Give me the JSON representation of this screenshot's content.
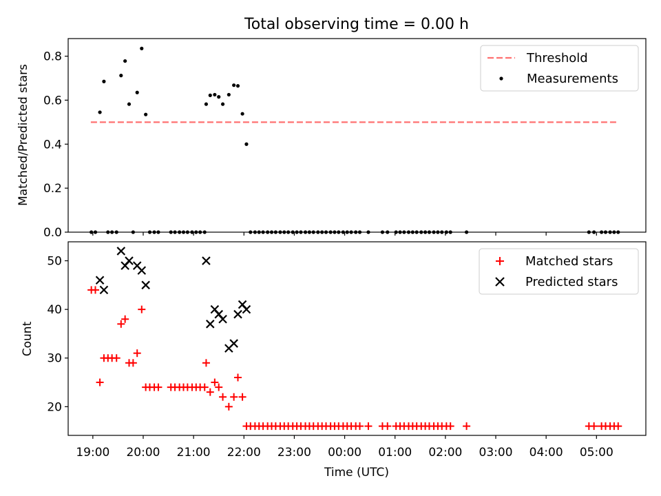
{
  "chart_data": [
    {
      "type": "scatter",
      "title": "Total observing time = 0.00 h",
      "ylabel": "Matched/Predicted stars",
      "xlabel": "",
      "xlim": [
        18.51,
        29.98
      ],
      "ylim": [
        0,
        0.88
      ],
      "yticks": [
        0.0,
        0.2,
        0.4,
        0.6,
        0.8
      ],
      "ytick_labels": [
        "0.0",
        "0.2",
        "0.4",
        "0.6",
        "0.8"
      ],
      "legend_position": "top-right",
      "grid": false,
      "threshold": {
        "name": "Threshold",
        "value": 0.5,
        "x_range": [
          18.96,
          29.44
        ],
        "color": "#ff7070"
      },
      "series": [
        {
          "name": "Measurements",
          "marker": "dot",
          "color": "#000000",
          "x": [
            19.14,
            19.22,
            19.56,
            19.64,
            19.72,
            19.88,
            19.97,
            20.05,
            21.25,
            21.33,
            21.42,
            21.5,
            21.58,
            21.7,
            21.8,
            21.88,
            21.97,
            22.05
          ],
          "y": [
            0.545,
            0.685,
            0.712,
            0.778,
            0.582,
            0.635,
            0.835,
            0.535,
            0.582,
            0.622,
            0.625,
            0.615,
            0.582,
            0.625,
            0.668,
            0.665,
            0.538,
            0.4
          ]
        },
        {
          "name": "",
          "marker": "dot",
          "color": "#000000",
          "x": [
            18.97,
            19.05,
            19.3,
            19.38,
            19.47,
            19.8,
            20.13,
            20.22,
            20.3,
            20.55,
            20.63,
            20.72,
            20.8,
            20.88,
            20.97,
            21.05,
            21.13,
            21.22,
            22.13,
            22.22,
            22.3,
            22.38,
            22.47,
            22.55,
            22.63,
            22.72,
            22.8,
            22.88,
            22.97,
            23.05,
            23.13,
            23.22,
            23.3,
            23.38,
            23.47,
            23.55,
            23.63,
            23.72,
            23.8,
            23.88,
            23.97,
            24.05,
            24.13,
            24.22,
            24.3,
            24.47,
            24.75,
            24.85,
            25.02,
            25.1,
            25.18,
            25.27,
            25.35,
            25.43,
            25.52,
            25.6,
            25.68,
            25.77,
            25.85,
            25.93,
            26.02,
            26.1,
            26.42,
            28.85,
            28.95,
            29.1,
            29.18,
            29.27,
            29.35,
            29.43
          ],
          "y": [
            0,
            0,
            0,
            0,
            0,
            0,
            0,
            0,
            0,
            0,
            0,
            0,
            0,
            0,
            0,
            0,
            0,
            0,
            0,
            0,
            0,
            0,
            0,
            0,
            0,
            0,
            0,
            0,
            0,
            0,
            0,
            0,
            0,
            0,
            0,
            0,
            0,
            0,
            0,
            0,
            0,
            0,
            0,
            0,
            0,
            0,
            0,
            0,
            0,
            0,
            0,
            0,
            0,
            0,
            0,
            0,
            0,
            0,
            0,
            0,
            0,
            0,
            0,
            0,
            0,
            0,
            0,
            0,
            0,
            0
          ]
        }
      ]
    },
    {
      "type": "scatter",
      "title": "",
      "ylabel": "Count",
      "xlabel": "Time (UTC)",
      "xlim": [
        18.51,
        29.98
      ],
      "ylim": [
        14.1,
        53.9
      ],
      "yticks": [
        20,
        30,
        40,
        50
      ],
      "ytick_labels": [
        "20",
        "30",
        "40",
        "50"
      ],
      "xticks": [
        19,
        20,
        21,
        22,
        23,
        24,
        25,
        26,
        27,
        28,
        29
      ],
      "xtick_labels": [
        "19:00",
        "20:00",
        "21:00",
        "22:00",
        "23:00",
        "00:00",
        "01:00",
        "02:00",
        "03:00",
        "04:00",
        "05:00"
      ],
      "legend_position": "top-right",
      "grid": false,
      "series": [
        {
          "name": "Matched stars",
          "marker": "plus",
          "color": "#ff0000",
          "x": [
            18.97,
            19.05,
            19.14,
            19.22,
            19.3,
            19.38,
            19.47,
            19.56,
            19.64,
            19.72,
            19.8,
            19.88,
            19.97,
            20.05,
            20.13,
            20.22,
            20.3,
            20.55,
            20.63,
            20.72,
            20.8,
            20.88,
            20.97,
            21.05,
            21.13,
            21.22,
            21.25,
            21.33,
            21.42,
            21.5,
            21.58,
            21.7,
            21.8,
            21.88,
            21.97,
            22.05,
            22.13,
            22.22,
            22.3,
            22.38,
            22.47,
            22.55,
            22.63,
            22.72,
            22.8,
            22.88,
            22.97,
            23.05,
            23.13,
            23.22,
            23.3,
            23.38,
            23.47,
            23.55,
            23.63,
            23.72,
            23.8,
            23.88,
            23.97,
            24.05,
            24.13,
            24.22,
            24.3,
            24.47,
            24.75,
            24.85,
            25.02,
            25.1,
            25.18,
            25.27,
            25.35,
            25.43,
            25.52,
            25.6,
            25.68,
            25.77,
            25.85,
            25.93,
            26.02,
            26.1,
            26.42,
            28.85,
            28.95,
            29.1,
            29.18,
            29.27,
            29.35,
            29.43
          ],
          "y": [
            44,
            44,
            25,
            30,
            30,
            30,
            30,
            37,
            38,
            29,
            29,
            31,
            40,
            24,
            24,
            24,
            24,
            24,
            24,
            24,
            24,
            24,
            24,
            24,
            24,
            24,
            29,
            23,
            25,
            24,
            22,
            20,
            22,
            26,
            22,
            16,
            16,
            16,
            16,
            16,
            16,
            16,
            16,
            16,
            16,
            16,
            16,
            16,
            16,
            16,
            16,
            16,
            16,
            16,
            16,
            16,
            16,
            16,
            16,
            16,
            16,
            16,
            16,
            16,
            16,
            16,
            16,
            16,
            16,
            16,
            16,
            16,
            16,
            16,
            16,
            16,
            16,
            16,
            16,
            16,
            16,
            16,
            16,
            16,
            16,
            16,
            16,
            16
          ]
        },
        {
          "name": "Predicted stars",
          "marker": "x",
          "color": "#000000",
          "x": [
            19.14,
            19.22,
            19.56,
            19.64,
            19.72,
            19.88,
            19.97,
            20.05,
            21.25,
            21.33,
            21.42,
            21.5,
            21.58,
            21.7,
            21.8,
            21.88,
            21.97,
            22.05
          ],
          "y": [
            46,
            44,
            52,
            49,
            50,
            49,
            48,
            45,
            50,
            37,
            40,
            39,
            38,
            32,
            33,
            39,
            41,
            40
          ]
        }
      ]
    }
  ]
}
